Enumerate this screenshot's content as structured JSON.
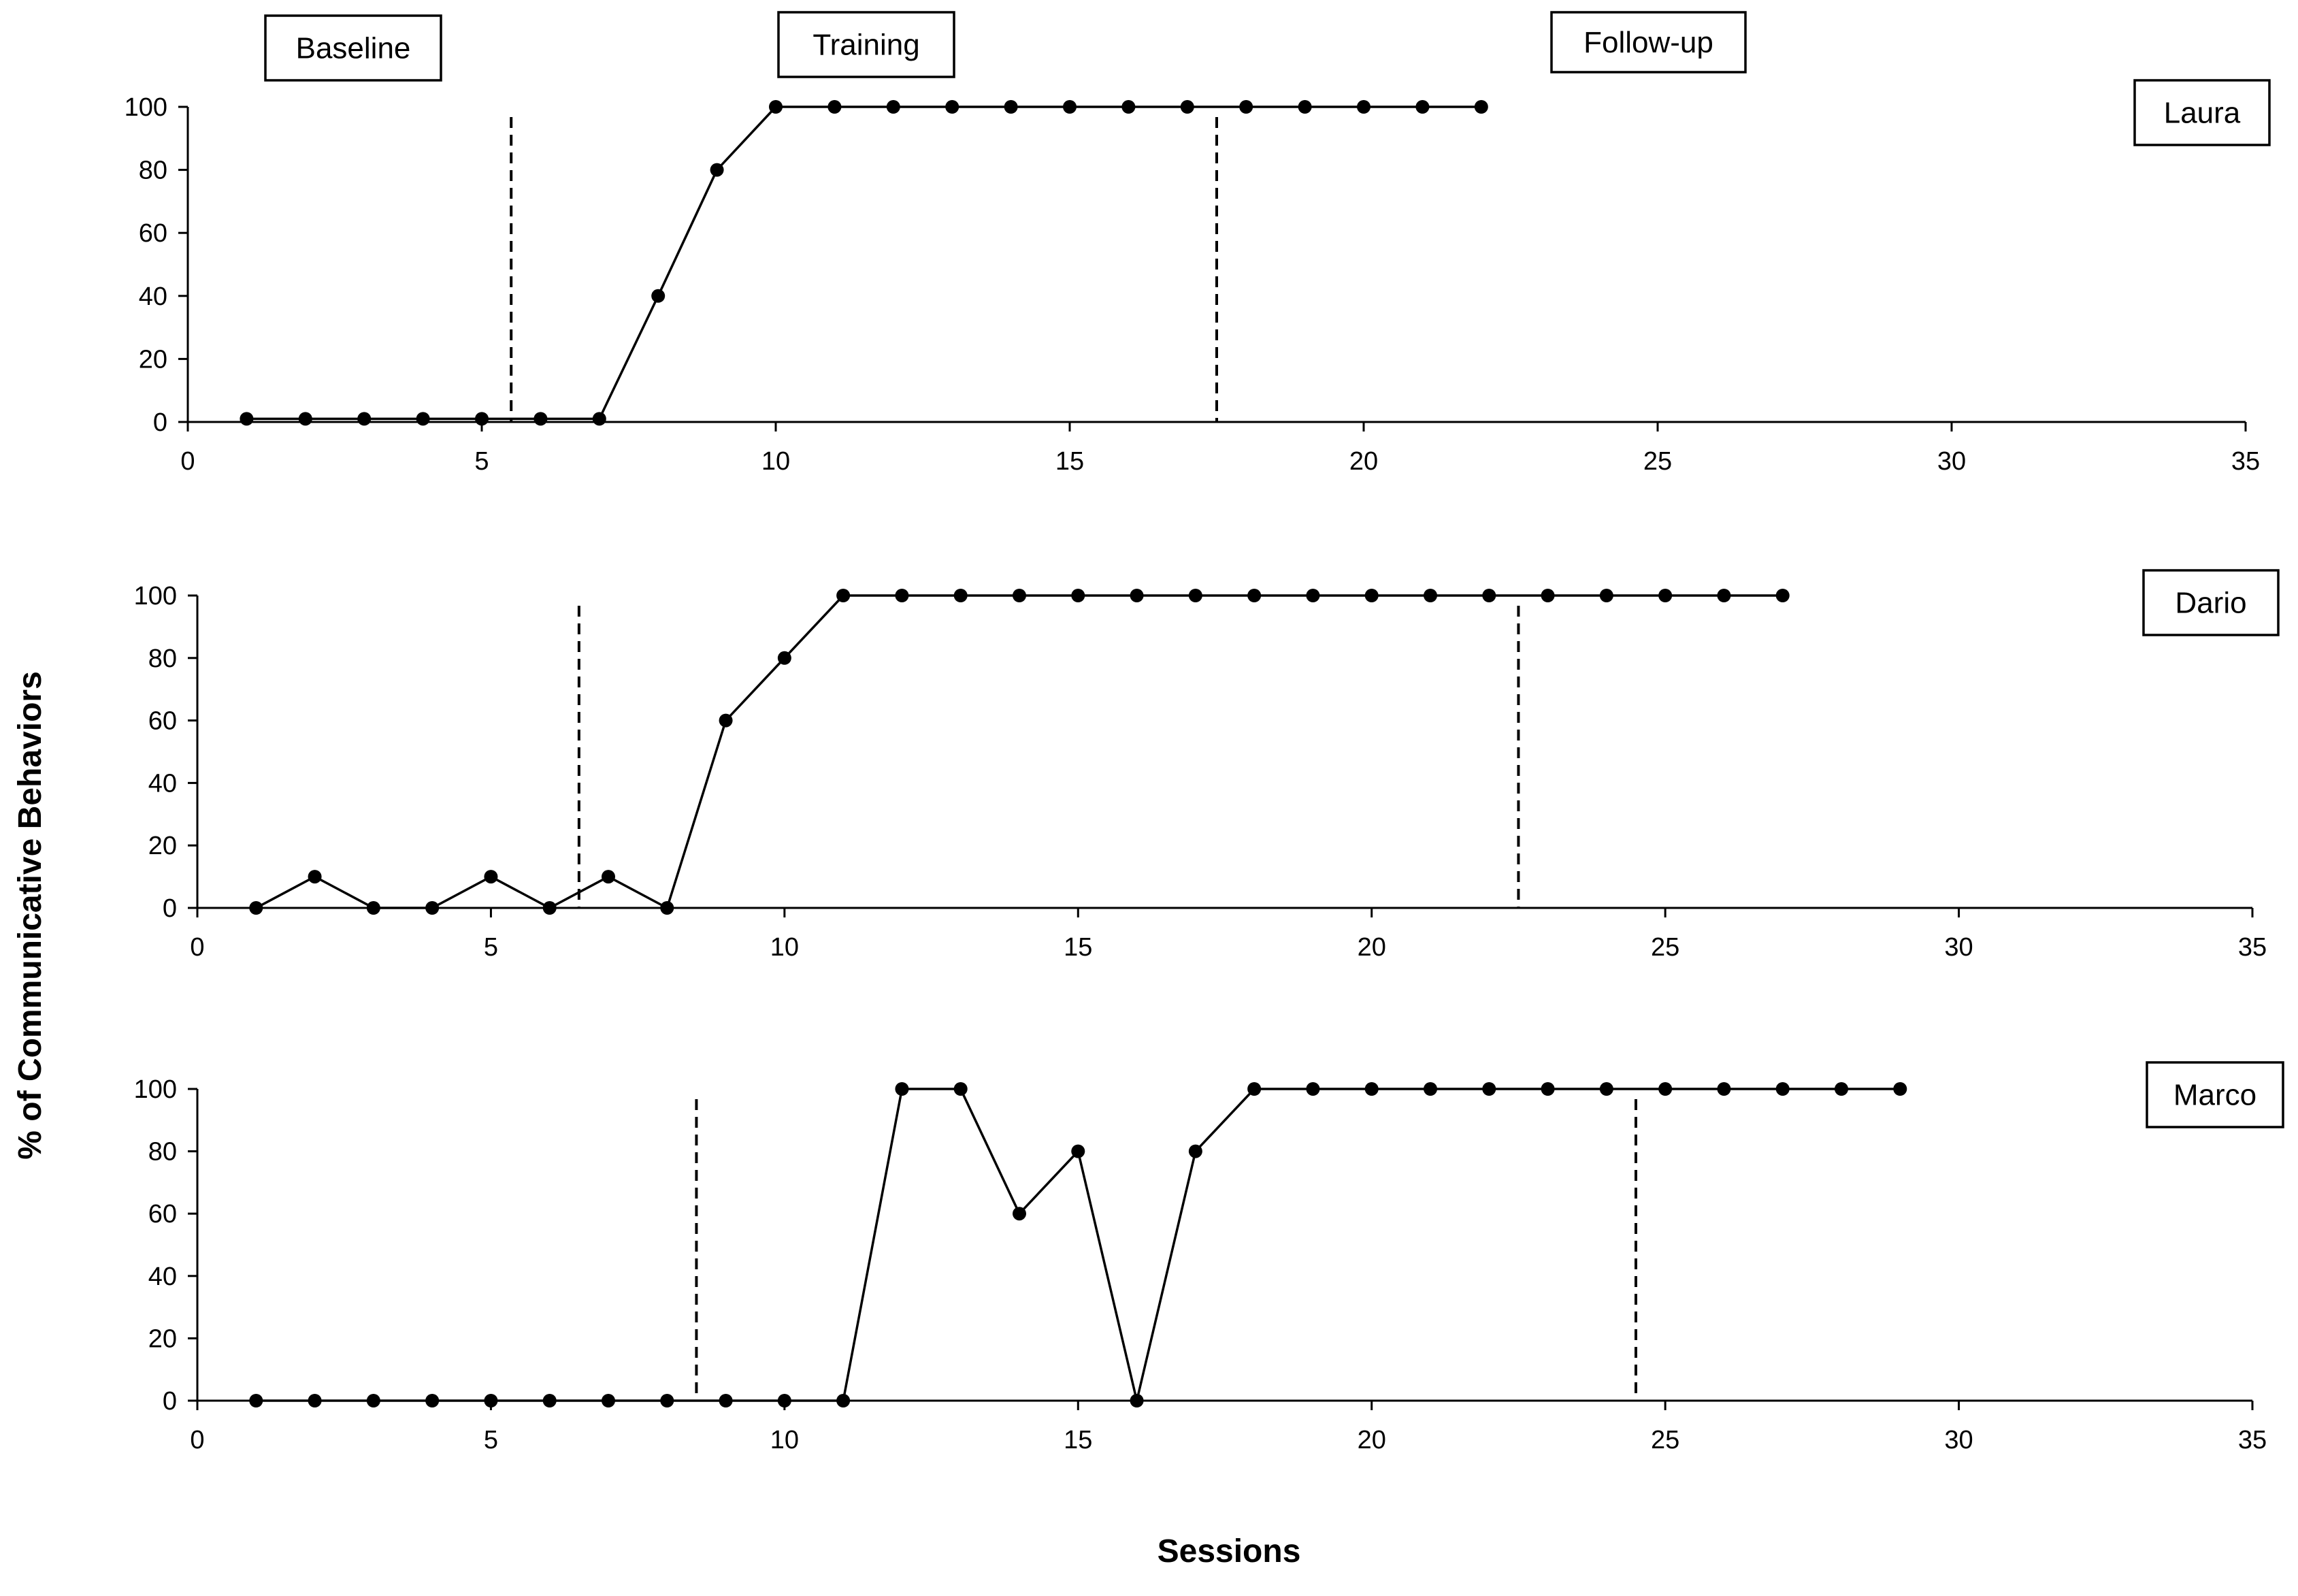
{
  "chart_data": {
    "type": "line",
    "ylabel": "% of Communicative Behaviors",
    "xlabel": "Sessions",
    "phase_labels": [
      "Baseline",
      "Training",
      "Follow-up"
    ],
    "xlim": [
      0,
      35
    ],
    "ylim": [
      0,
      100
    ],
    "x_ticks": [
      0,
      5,
      10,
      15,
      20,
      25,
      30,
      35
    ],
    "y_ticks": [
      0,
      20,
      40,
      60,
      80,
      100
    ],
    "grid": false,
    "panels": [
      {
        "name": "Laura",
        "phase_changes": [
          5.5,
          17.5
        ],
        "x": [
          1,
          2,
          3,
          4,
          5,
          6,
          7,
          8,
          9,
          10,
          11,
          12,
          13,
          14,
          15,
          16,
          17,
          18,
          19,
          20,
          21,
          22
        ],
        "y": [
          1,
          1,
          1,
          1,
          1,
          1,
          1,
          40,
          80,
          100,
          100,
          100,
          100,
          100,
          100,
          100,
          100,
          100,
          100,
          100,
          100,
          100
        ]
      },
      {
        "name": "Dario",
        "phase_changes": [
          6.5,
          22.5
        ],
        "x": [
          1,
          2,
          3,
          4,
          5,
          6,
          7,
          8,
          9,
          10,
          11,
          12,
          13,
          14,
          15,
          16,
          17,
          18,
          19,
          20,
          21,
          22,
          23,
          24,
          25,
          26,
          27
        ],
        "y": [
          0,
          10,
          0,
          0,
          10,
          0,
          10,
          0,
          60,
          80,
          100,
          100,
          100,
          100,
          100,
          100,
          100,
          100,
          100,
          100,
          100,
          100,
          100,
          100,
          100,
          100,
          100
        ]
      },
      {
        "name": "Marco",
        "phase_changes": [
          8.5,
          24.5
        ],
        "x": [
          1,
          2,
          3,
          4,
          5,
          6,
          7,
          8,
          9,
          10,
          11,
          12,
          13,
          14,
          15,
          16,
          17,
          18,
          19,
          20,
          21,
          22,
          23,
          24,
          25,
          26,
          27,
          28,
          29
        ],
        "y": [
          0,
          0,
          0,
          0,
          0,
          0,
          0,
          0,
          0,
          0,
          0,
          100,
          100,
          60,
          80,
          0,
          80,
          100,
          100,
          100,
          100,
          100,
          100,
          100,
          100,
          100,
          100,
          100,
          100
        ]
      }
    ]
  }
}
